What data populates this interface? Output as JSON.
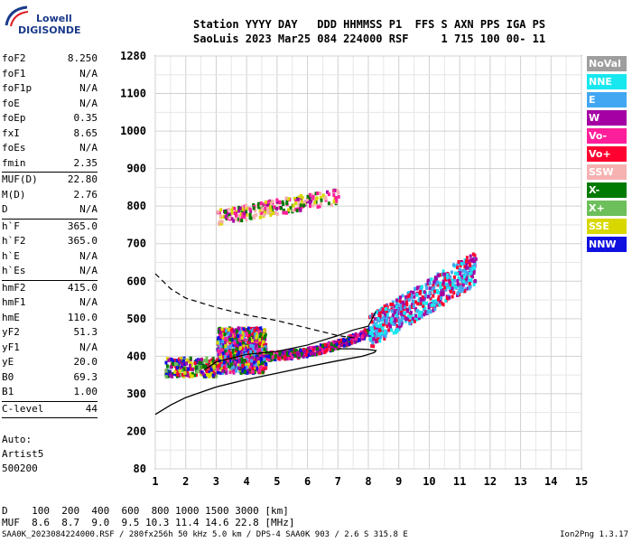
{
  "logo": {
    "line1": "Lowell",
    "line2": "DIGISONDE"
  },
  "header": {
    "line1": "Station YYYY DAY   DDD HHMMSS P1  FFS S AXN PPS IGA PS",
    "line2": "SaoLuis 2023 Mar25 084 224000 RSF     1 715 100 00- 11"
  },
  "params": [
    {
      "k": "foF2",
      "v": "8.250",
      "sep": false
    },
    {
      "k": "foF1",
      "v": "N/A",
      "sep": false
    },
    {
      "k": "foF1p",
      "v": "N/A",
      "sep": false
    },
    {
      "k": "foE",
      "v": "N/A",
      "sep": false
    },
    {
      "k": "foEp",
      "v": "0.35",
      "sep": false
    },
    {
      "k": "fxI",
      "v": "8.65",
      "sep": false
    },
    {
      "k": "foEs",
      "v": "N/A",
      "sep": false
    },
    {
      "k": "fmin",
      "v": "2.35",
      "sep": true
    },
    {
      "k": "MUF(D)",
      "v": "22.80",
      "sep": false
    },
    {
      "k": "M(D)",
      "v": "2.76",
      "sep": false
    },
    {
      "k": "D",
      "v": "N/A",
      "sep": true
    },
    {
      "k": "h`F",
      "v": "365.0",
      "sep": false
    },
    {
      "k": "h`F2",
      "v": "365.0",
      "sep": false
    },
    {
      "k": "h`E",
      "v": "N/A",
      "sep": false
    },
    {
      "k": "h`Es",
      "v": "N/A",
      "sep": true
    },
    {
      "k": "hmF2",
      "v": "415.0",
      "sep": false
    },
    {
      "k": "hmF1",
      "v": "N/A",
      "sep": false
    },
    {
      "k": "hmE",
      "v": "110.0",
      "sep": false
    },
    {
      "k": "yF2",
      "v": "51.3",
      "sep": false
    },
    {
      "k": "yF1",
      "v": "N/A",
      "sep": false
    },
    {
      "k": "yE",
      "v": "20.0",
      "sep": false
    },
    {
      "k": "B0",
      "v": "69.3",
      "sep": false
    },
    {
      "k": "B1",
      "v": "1.00",
      "sep": true
    },
    {
      "k": "C-level",
      "v": "44",
      "sep": true
    }
  ],
  "auto": {
    "l1": "Auto:",
    "l2": "Artist5",
    "l3": "500200"
  },
  "legend": [
    {
      "label": "NoVal",
      "color": "#9e9e9e"
    },
    {
      "label": "NNE",
      "color": "#17e8f0"
    },
    {
      "label": "E",
      "color": "#42a7f2"
    },
    {
      "label": "W",
      "color": "#a400a4"
    },
    {
      "label": "Vo-",
      "color": "#ff1f9a"
    },
    {
      "label": "Vo+",
      "color": "#ff0030"
    },
    {
      "label": "SSW",
      "color": "#f6b1b1"
    },
    {
      "label": "X-",
      "color": "#007a00"
    },
    {
      "label": "X+",
      "color": "#6cbf5a"
    },
    {
      "label": "SSE",
      "color": "#d8d800"
    },
    {
      "label": "NNW",
      "color": "#1010e0"
    }
  ],
  "bottom": {
    "d_row": "D    100  200  400  600  800 1000 1500 3000 [km]",
    "muf_row": "MUF  8.6  8.7  9.0  9.5 10.3 11.4 14.6 22.8 [MHz]"
  },
  "footer": "SAA0K_2023084224000.RSF / 280fx256h 50 kHz 5.0 km / DPS-4 SAA0K 903 / 2.6 S 315.8 E",
  "version": "Ion2Png 1.3.17",
  "chart_data": {
    "type": "scatter",
    "xlim": [
      1,
      15
    ],
    "x_ticks": [
      1,
      2,
      3,
      4,
      5,
      6,
      7,
      8,
      9,
      10,
      11,
      12,
      13,
      14,
      15
    ],
    "y_ticks": [
      80,
      200,
      300,
      400,
      500,
      600,
      700,
      800,
      900,
      1000,
      1100,
      1280
    ],
    "y_tick_labels": [
      "80",
      "200",
      "300",
      "400",
      "500",
      "600",
      "700",
      "800",
      "900",
      "1000",
      "1100",
      "1280"
    ],
    "x_unit": "MHz",
    "y_unit": "km",
    "grid": true,
    "profile_curve": [
      [
        1.0,
        245
      ],
      [
        1.5,
        270
      ],
      [
        2.0,
        290
      ],
      [
        3.0,
        318
      ],
      [
        4.0,
        338
      ],
      [
        5.0,
        355
      ],
      [
        6.0,
        372
      ],
      [
        7.0,
        388
      ],
      [
        7.8,
        400
      ],
      [
        8.2,
        410
      ],
      [
        8.25,
        415
      ],
      [
        8.0,
        418
      ],
      [
        7.5,
        420
      ],
      [
        7.0,
        420
      ]
    ],
    "ordinary_trace": [
      [
        2.6,
        363
      ],
      [
        3.0,
        385
      ],
      [
        3.5,
        395
      ],
      [
        4.0,
        405
      ],
      [
        5.0,
        413
      ],
      [
        6.0,
        430
      ],
      [
        7.0,
        455
      ],
      [
        7.5,
        470
      ],
      [
        8.0,
        480
      ],
      [
        8.25,
        520
      ]
    ],
    "extraordinary_dashed": [
      [
        1.0,
        620
      ],
      [
        1.5,
        580
      ],
      [
        2.0,
        555
      ],
      [
        3.0,
        530
      ],
      [
        4.0,
        510
      ],
      [
        5.0,
        495
      ],
      [
        6.0,
        475
      ],
      [
        7.0,
        455
      ],
      [
        7.6,
        448
      ]
    ],
    "echo_clusters": [
      {
        "region": "F trace low",
        "freq": [
          1.3,
          3.0
        ],
        "height": [
          350,
          400
        ],
        "colors": [
          "W",
          "NNW",
          "X+",
          "SSE",
          "Vo+",
          "X-"
        ]
      },
      {
        "region": "spread F",
        "freq": [
          3.0,
          4.6
        ],
        "height": [
          360,
          480
        ],
        "colors": [
          "W",
          "NNW",
          "Vo-",
          "Vo+",
          "SSE",
          "X-",
          "E"
        ]
      },
      {
        "region": "F trace",
        "freq": [
          4.6,
          8.0
        ],
        "height": [
          400,
          470
        ],
        "colors": [
          "Vo-",
          "Vo+",
          "X-",
          "W",
          "NNW"
        ]
      },
      {
        "region": "F spread high",
        "freq": [
          8.0,
          11.5
        ],
        "height": [
          470,
          650
        ],
        "colors": [
          "E",
          "NNE",
          "Vo+",
          "W"
        ]
      },
      {
        "region": "second hop",
        "freq": [
          3.0,
          7.0
        ],
        "height": [
          770,
          860
        ],
        "colors": [
          "W",
          "Vo-",
          "SSW",
          "SSE",
          "X-"
        ]
      }
    ]
  }
}
